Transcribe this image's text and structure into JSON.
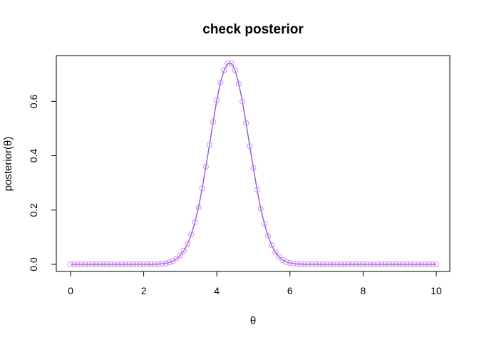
{
  "chart_data": {
    "type": "line",
    "title": "check posterior",
    "xlabel": "θ",
    "ylabel": "posterior(θ)",
    "xlim": [
      0,
      10
    ],
    "ylim": [
      0,
      0.74
    ],
    "x_ticks": [
      0,
      2,
      4,
      6,
      8,
      10
    ],
    "x_tick_labels": [
      "0",
      "2",
      "4",
      "6",
      "8",
      "10"
    ],
    "y_ticks": [
      0,
      0.2,
      0.4,
      0.6
    ],
    "y_tick_labels": [
      "0.0",
      "0.2",
      "0.4",
      "0.6"
    ],
    "grid": false,
    "line_color": "#8b5bd6",
    "point_color": "#d58af0",
    "series": [
      {
        "style": "line",
        "x": [
          0,
          0.1,
          0.2,
          0.3,
          0.4,
          0.5,
          0.6,
          0.7,
          0.8,
          0.9,
          1.0,
          1.1,
          1.2,
          1.3,
          1.4,
          1.5,
          1.6,
          1.7,
          1.8,
          1.9,
          2.0,
          2.1,
          2.2,
          2.3,
          2.4,
          2.5,
          2.6,
          2.7,
          2.8,
          2.9,
          3.0,
          3.1,
          3.2,
          3.3,
          3.4,
          3.5,
          3.6,
          3.7,
          3.8,
          3.9,
          4.0,
          4.1,
          4.2,
          4.3,
          4.4,
          4.5,
          4.6,
          4.7,
          4.8,
          4.9,
          5.0,
          5.1,
          5.2,
          5.3,
          5.4,
          5.5,
          5.6,
          5.7,
          5.8,
          5.9,
          6.0,
          6.1,
          6.2,
          6.3,
          6.4,
          6.5,
          6.6,
          6.7,
          6.8,
          6.9,
          7.0,
          7.1,
          7.2,
          7.3,
          7.4,
          7.5,
          7.6,
          7.7,
          7.8,
          7.9,
          8.0,
          8.1,
          8.2,
          8.3,
          8.4,
          8.5,
          8.6,
          8.7,
          8.8,
          8.9,
          9.0,
          9.1,
          9.2,
          9.3,
          9.4,
          9.5,
          9.6,
          9.7,
          9.8,
          9.9,
          10.0
        ],
        "y": [
          0,
          0,
          0,
          0,
          0,
          0,
          0,
          0,
          0,
          0,
          0,
          0,
          0,
          0,
          0,
          0,
          0,
          0,
          0,
          0,
          0,
          0,
          0,
          0,
          0.001,
          0.002,
          0.004,
          0.007,
          0.012,
          0.02,
          0.033,
          0.05,
          0.075,
          0.11,
          0.155,
          0.21,
          0.28,
          0.36,
          0.44,
          0.525,
          0.605,
          0.67,
          0.715,
          0.74,
          0.74,
          0.715,
          0.665,
          0.6,
          0.52,
          0.435,
          0.355,
          0.275,
          0.205,
          0.15,
          0.105,
          0.07,
          0.045,
          0.028,
          0.016,
          0.009,
          0.005,
          0.003,
          0.001,
          0.001,
          0,
          0,
          0,
          0,
          0,
          0,
          0,
          0,
          0,
          0,
          0,
          0,
          0,
          0,
          0,
          0,
          0,
          0,
          0,
          0,
          0,
          0,
          0,
          0,
          0,
          0,
          0,
          0,
          0,
          0,
          0,
          0,
          0,
          0,
          0,
          0,
          0
        ]
      },
      {
        "style": "points",
        "x": [
          0,
          0.1,
          0.2,
          0.3,
          0.4,
          0.5,
          0.6,
          0.7,
          0.8,
          0.9,
          1.0,
          1.1,
          1.2,
          1.3,
          1.4,
          1.5,
          1.6,
          1.7,
          1.8,
          1.9,
          2.0,
          2.1,
          2.2,
          2.3,
          2.4,
          2.5,
          2.6,
          2.7,
          2.8,
          2.9,
          3.0,
          3.1,
          3.2,
          3.3,
          3.4,
          3.5,
          3.6,
          3.7,
          3.8,
          3.9,
          4.0,
          4.1,
          4.2,
          4.3,
          4.4,
          4.5,
          4.6,
          4.7,
          4.8,
          4.9,
          5.0,
          5.1,
          5.2,
          5.3,
          5.4,
          5.5,
          5.6,
          5.7,
          5.8,
          5.9,
          6.0,
          6.1,
          6.2,
          6.3,
          6.4,
          6.5,
          6.6,
          6.7,
          6.8,
          6.9,
          7.0,
          7.1,
          7.2,
          7.3,
          7.4,
          7.5,
          7.6,
          7.7,
          7.8,
          7.9,
          8.0,
          8.1,
          8.2,
          8.3,
          8.4,
          8.5,
          8.6,
          8.7,
          8.8,
          8.9,
          9.0,
          9.1,
          9.2,
          9.3,
          9.4,
          9.5,
          9.6,
          9.7,
          9.8,
          9.9,
          10.0
        ],
        "y": [
          0,
          0,
          0,
          0,
          0,
          0,
          0,
          0,
          0,
          0,
          0,
          0,
          0,
          0,
          0,
          0,
          0,
          0,
          0,
          0,
          0,
          0,
          0,
          0,
          0.001,
          0.002,
          0.004,
          0.007,
          0.012,
          0.02,
          0.033,
          0.05,
          0.075,
          0.11,
          0.155,
          0.21,
          0.28,
          0.36,
          0.44,
          0.525,
          0.605,
          0.67,
          0.715,
          0.74,
          0.74,
          0.715,
          0.665,
          0.6,
          0.52,
          0.435,
          0.355,
          0.275,
          0.205,
          0.15,
          0.105,
          0.07,
          0.045,
          0.028,
          0.016,
          0.009,
          0.005,
          0.003,
          0.001,
          0.001,
          0,
          0,
          0,
          0,
          0,
          0,
          0,
          0,
          0,
          0,
          0,
          0,
          0,
          0,
          0,
          0,
          0,
          0,
          0,
          0,
          0,
          0,
          0,
          0,
          0,
          0,
          0,
          0,
          0,
          0,
          0,
          0,
          0,
          0,
          0,
          0,
          0
        ]
      }
    ]
  }
}
